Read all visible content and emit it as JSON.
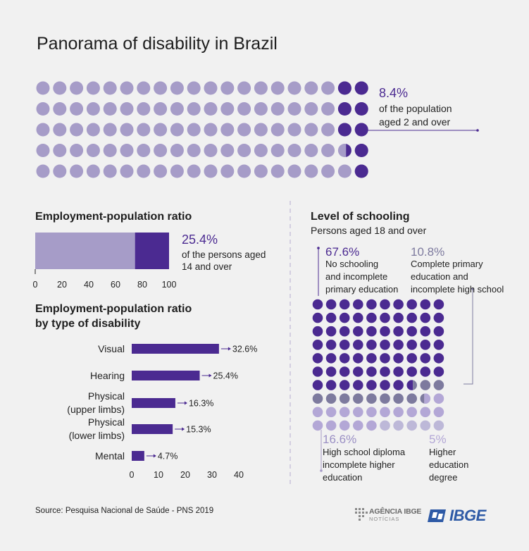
{
  "title": "Panorama of disability in Brazil",
  "colors": {
    "dark": "#4b2a91",
    "light": "#a69cc8",
    "mid": "#7d7a9e",
    "pale": "#b3a7d6",
    "lightest": "#bdb8d8",
    "text": "#222222"
  },
  "chart_data": [
    {
      "type": "waffle",
      "percent": 8.4,
      "value_label": "8.4%",
      "description": "of the population aged 2 and over",
      "desc_line1": "of the population",
      "desc_line2": "aged 2 and over"
    },
    {
      "type": "bar",
      "title": "Employment-population ratio",
      "value": 25.4,
      "value_label": "25.4%",
      "desc_line1": "of the persons aged",
      "desc_line2": "14 and over",
      "ticks": [
        "0",
        "20",
        "40",
        "60",
        "80",
        "100"
      ],
      "xlim": [
        0,
        100
      ]
    },
    {
      "type": "bar",
      "orientation": "horizontal",
      "title_line1": "Employment-population ratio",
      "title_line2": "by type of disability",
      "categories": [
        {
          "line1": "Visual",
          "line2": "",
          "value": 32.6,
          "label": "32.6%"
        },
        {
          "line1": "Hearing",
          "line2": "",
          "value": 25.4,
          "label": "25.4%"
        },
        {
          "line1": "Physical",
          "line2": "(upper limbs)",
          "value": 16.3,
          "label": "16.3%"
        },
        {
          "line1": "Physical",
          "line2": "(lower limbs)",
          "value": 15.3,
          "label": "15.3%"
        },
        {
          "line1": "Mental",
          "line2": "",
          "value": 4.7,
          "label": "4.7%"
        }
      ],
      "ticks": [
        "0",
        "10",
        "20",
        "30",
        "40"
      ],
      "xlim": [
        0,
        40
      ]
    },
    {
      "type": "waffle",
      "title": "Level of schooling",
      "subtitle": "Persons aged 18 and over",
      "segments": [
        {
          "value": 67.6,
          "label": "67.6%",
          "line1": "No schooling",
          "line2": "and incomplete",
          "line3": "primary education"
        },
        {
          "value": 10.8,
          "label": "10.8%",
          "line1": "Complete primary",
          "line2": "education and",
          "line3": "incomplete high school"
        },
        {
          "value": 16.6,
          "label": "16.6%",
          "line1": "High school diploma",
          "line2": "incomplete higher",
          "line3": "education"
        },
        {
          "value": 5,
          "label": "5%",
          "line1": "Higher",
          "line2": "education",
          "line3": "degree"
        }
      ]
    }
  ],
  "footer": {
    "source": "Source: Pesquisa Nacional de Saúde - PNS 2019",
    "agency_line1": "AGÊNCIA IBGE",
    "agency_line2": "NOTÍCIAS",
    "logo": "IBGE"
  }
}
